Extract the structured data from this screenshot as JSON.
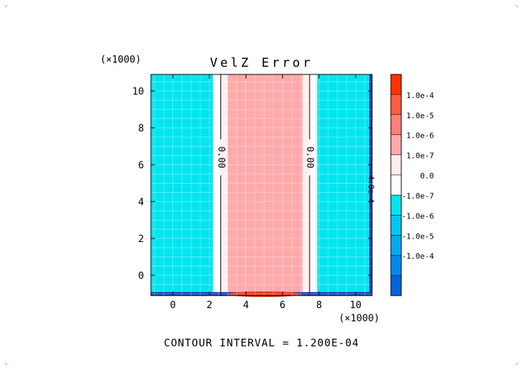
{
  "chart_data": {
    "type": "heatmap",
    "title": "VelZ Error",
    "x_scale_label": "(×1000)",
    "y_scale_label": "(×1000)",
    "xlim": [
      -1.2,
      10.9
    ],
    "ylim": [
      -1.1,
      10.9
    ],
    "x_ticks": [
      0,
      2,
      4,
      6,
      8,
      10
    ],
    "y_ticks": [
      0,
      2,
      4,
      6,
      8,
      10
    ],
    "grid": true,
    "bands": [
      {
        "x0": -1.2,
        "x1": 2.2,
        "color": "#00e5ee"
      },
      {
        "x0": 2.2,
        "x1": 2.55,
        "color": "#ffffff"
      },
      {
        "x0": 2.55,
        "x1": 3.0,
        "color": "#fff0f0"
      },
      {
        "x0": 3.0,
        "x1": 7.1,
        "color": "#ffaaaa"
      },
      {
        "x0": 7.1,
        "x1": 7.55,
        "color": "#fff0f0"
      },
      {
        "x0": 7.55,
        "x1": 7.9,
        "color": "#ffffff"
      },
      {
        "x0": 7.9,
        "x1": 10.9,
        "color": "#00e5ee"
      }
    ],
    "contour_lines": [
      {
        "x": 2.62,
        "label": "0.00",
        "label_y": 6.4
      },
      {
        "x": 7.48,
        "label": "0.00",
        "label_y": 6.4
      }
    ],
    "edge_label": {
      "text": "-4.8e-4",
      "x": 10.82,
      "y": 4.8
    },
    "legend": {
      "placement": "right",
      "levels": [
        {
          "label": "",
          "color": "#ff3300"
        },
        {
          "label": "1.0e-4",
          "color": "#ff5c40"
        },
        {
          "label": "1.0e-5",
          "color": "#ff7f7a"
        },
        {
          "label": "1.0e-6",
          "color": "#ffaaaa"
        },
        {
          "label": "1.0e-7",
          "color": "#ffecec"
        },
        {
          "label": "0.0",
          "color": "#ffffff"
        },
        {
          "label": "-1.0e-7",
          "color": "#00e5ee"
        },
        {
          "label": "-1.0e-6",
          "color": "#00c8f0"
        },
        {
          "label": "-1.0e-5",
          "color": "#00aaf0"
        },
        {
          "label": "-1.0e-4",
          "color": "#0088ee"
        },
        {
          "label": "",
          "color": "#0066dd"
        }
      ]
    },
    "footer": "CONTOUR INTERVAL = 1.200E-04"
  }
}
